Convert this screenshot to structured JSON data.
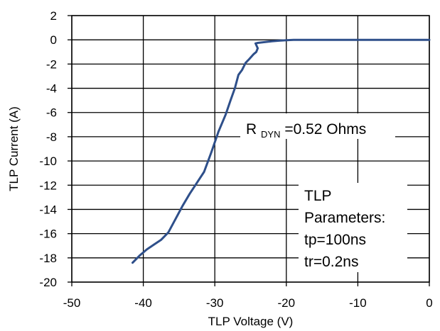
{
  "chart_data": {
    "type": "line",
    "title": "",
    "xlabel": "TLP Voltage (V)",
    "ylabel": "TLP Current (A)",
    "xlim": [
      -50,
      0
    ],
    "ylim": [
      -20,
      2
    ],
    "x_ticks": [
      -50,
      -40,
      -30,
      -20,
      -10,
      0
    ],
    "y_ticks": [
      2,
      0,
      -2,
      -4,
      -6,
      -8,
      -10,
      -12,
      -14,
      -16,
      -18,
      -20
    ],
    "x_tick_labels": [
      "-50",
      "-40",
      "-30",
      "-20",
      "-10",
      "0"
    ],
    "y_tick_labels": [
      "2",
      "0",
      "-2",
      "-4",
      "-6",
      "-8",
      "-10",
      "-12",
      "-14",
      "-16",
      "-18",
      "-20"
    ],
    "grid": true,
    "series": [
      {
        "color": "#2e4f8a",
        "x": [
          -41.5,
          -40.5,
          -39.5,
          -38.5,
          -37.5,
          -36.5,
          -35.5,
          -34.5,
          -33.5,
          -32.5,
          -31.5,
          -30.5,
          -29.5,
          -28.5,
          -27.8,
          -27.2,
          -26.7,
          -26.2,
          -25.7,
          -25.2,
          -24.6,
          -24.2,
          -24.0,
          -24.3,
          -24.0,
          -22.5,
          -21.0,
          -20.0,
          -19.0,
          -15.0,
          -10.0,
          -5.0,
          0.0
        ],
        "y": [
          -18.4,
          -17.8,
          -17.3,
          -16.9,
          -16.5,
          -15.9,
          -14.8,
          -13.7,
          -12.7,
          -11.8,
          -10.9,
          -9.3,
          -7.6,
          -6.2,
          -5.0,
          -4.0,
          -2.9,
          -2.5,
          -1.9,
          -1.6,
          -1.2,
          -1.0,
          -0.7,
          -0.3,
          -0.25,
          -0.15,
          -0.07,
          -0.03,
          0.0,
          0.0,
          0.0,
          0.0,
          0.0
        ]
      }
    ],
    "annotations": {
      "rdyn_main": "R",
      "rdyn_sub": "DYN",
      "rdyn_value": "=0.52 Ohms",
      "params_lines": [
        "TLP",
        "Parameters:",
        "tp=100ns",
        "tr=0.2ns"
      ]
    }
  }
}
